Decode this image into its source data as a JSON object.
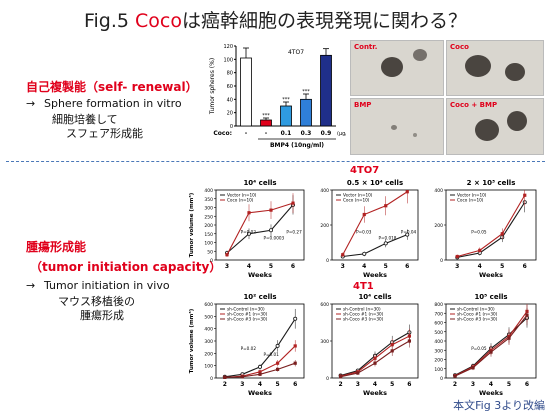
{
  "title": {
    "prefix": "Fig.5 ",
    "coco": "Coco",
    "rest": "は癌幹細胞の表現発現に関わる？"
  },
  "left_top": {
    "heading": "自己複製能（self- renewal）",
    "arrow": "→",
    "line1": "Sphere formation in vitro",
    "line2": "細胞培養して",
    "line3": "スフェア形成能"
  },
  "left_bottom": {
    "heading1": "腫瘍形成能",
    "heading2": "（tumor initiation capacity）",
    "arrow": "→",
    "line1": "Tumor initiation in vivo",
    "line2": "マウス移植後の",
    "line3": "腫瘍形成"
  },
  "photos": [
    {
      "label": "Contr."
    },
    {
      "label": "Coco"
    },
    {
      "label": "BMP"
    },
    {
      "label": "Coco + BMP"
    }
  ],
  "footer": "本文Fig 3より改編",
  "colors": {
    "red": "#e0001b",
    "blue": "#2f7fd8",
    "navy": "#1f2f8a",
    "line_black": "#1a1a1a",
    "line_red": "#b22222"
  },
  "chart_data": [
    {
      "type": "bar",
      "title": "4TO7",
      "ylabel": "Tumor spheres (%)",
      "ylim": [
        0,
        120
      ],
      "yticks": [
        0,
        20,
        40,
        60,
        80,
        100,
        120
      ],
      "row_label": "Coco:",
      "categories": [
        "-",
        "-",
        "0.1",
        "0.3",
        "0.9"
      ],
      "unit": "(μg/ml)",
      "bmp_label": "BMP4 (10ng/ml)",
      "bmp_signs": [
        "-",
        "+",
        "+",
        "+",
        "+"
      ],
      "values": [
        102,
        9,
        30,
        40,
        106
      ],
      "errors": [
        15,
        3,
        6,
        8,
        10
      ],
      "bar_colors": [
        "#ffffff",
        "#e0001b",
        "#2f9be0",
        "#2f7fd8",
        "#1f2f8a"
      ],
      "annotations": [
        "",
        "***",
        "***",
        "***",
        ""
      ]
    },
    {
      "type": "line",
      "group": "4TO7",
      "title": "10⁴ cells",
      "xlabel": "Weeks",
      "ylabel": "Tumor volume (mm³)",
      "x": [
        3,
        4,
        5,
        6
      ],
      "ylim": [
        0,
        400
      ],
      "yticks": [
        0,
        50,
        100,
        150,
        200,
        250,
        300,
        350,
        400
      ],
      "series": [
        {
          "name": "Vector (n=10)",
          "values": [
            40,
            150,
            170,
            315
          ],
          "color": "#1a1a1a"
        },
        {
          "name": "Coco (n=10)",
          "values": [
            30,
            270,
            285,
            325
          ],
          "color": "#b22222"
        }
      ],
      "annotations": [
        "P=0.02",
        "P=0.0003",
        "P=0.27"
      ]
    },
    {
      "type": "line",
      "group": "4TO7",
      "title": "0.5 × 10⁴ cells",
      "xlabel": "Weeks",
      "x": [
        3,
        4,
        5,
        6
      ],
      "ylim": [
        0,
        400
      ],
      "series": [
        {
          "name": "Vector (n=10)",
          "values": [
            20,
            35,
            95,
            145
          ],
          "color": "#1a1a1a"
        },
        {
          "name": "Coco (n=10)",
          "values": [
            30,
            260,
            310,
            390
          ],
          "color": "#b22222"
        }
      ],
      "annotations": [
        "P=0.03",
        "P=0.018",
        "P=0.04"
      ]
    },
    {
      "type": "line",
      "group": "4TO7",
      "title": "2 × 10³ cells",
      "xlabel": "Weeks",
      "x": [
        3,
        4,
        5,
        6
      ],
      "ylim": [
        0,
        400
      ],
      "series": [
        {
          "name": "Vector (n=10)",
          "values": [
            15,
            40,
            130,
            330
          ],
          "color": "#1a1a1a"
        },
        {
          "name": "Coco (n=10)",
          "values": [
            20,
            55,
            150,
            370
          ],
          "color": "#b22222"
        }
      ],
      "annotations": [
        "P=0.05"
      ]
    },
    {
      "type": "line",
      "group": "4T1",
      "title": "10² cells",
      "xlabel": "Weeks",
      "ylabel": "Tumor volume (mm³)",
      "x": [
        2,
        3,
        4,
        5,
        6
      ],
      "ylim": [
        0,
        600
      ],
      "yticks": [
        0,
        100,
        200,
        300,
        400,
        500,
        600
      ],
      "series": [
        {
          "name": "sh-Control (n=30)",
          "values": [
            10,
            30,
            90,
            260,
            480
          ],
          "color": "#1a1a1a"
        },
        {
          "name": "sh-Coco #1 (n=30)",
          "values": [
            5,
            15,
            50,
            120,
            260
          ],
          "color": "#b22222"
        },
        {
          "name": "sh-Coco #3 (n=30)",
          "values": [
            5,
            10,
            30,
            70,
            120
          ],
          "color": "#7a1f1f"
        }
      ],
      "annotations": [
        "P=0.02",
        "P=0.01"
      ]
    },
    {
      "type": "line",
      "group": "4T1",
      "title": "10⁴ cells",
      "xlabel": "Weeks",
      "x": [
        2,
        3,
        4,
        5,
        6
      ],
      "ylim": [
        0,
        600
      ],
      "series": [
        {
          "name": "sh-Control (n=30)",
          "values": [
            20,
            60,
            180,
            290,
            370
          ],
          "color": "#1a1a1a"
        },
        {
          "name": "sh-Coco #1 (n=30)",
          "values": [
            15,
            50,
            160,
            270,
            340
          ],
          "color": "#b22222"
        },
        {
          "name": "sh-Coco #3 (n=30)",
          "values": [
            10,
            40,
            120,
            220,
            300
          ],
          "color": "#7a1f1f"
        }
      ],
      "annotations": []
    },
    {
      "type": "line",
      "group": "4T1",
      "title": "10⁵ cells",
      "xlabel": "Weeks",
      "x": [
        2,
        3,
        4,
        5,
        6
      ],
      "ylim": [
        0,
        800
      ],
      "yticks": [
        0,
        100,
        200,
        300,
        400,
        500,
        600,
        700,
        800
      ],
      "series": [
        {
          "name": "sh-Control (n=30)",
          "values": [
            30,
            130,
            320,
            470,
            650
          ],
          "color": "#1a1a1a"
        },
        {
          "name": "sh-Coco #1 (n=30)",
          "values": [
            25,
            120,
            300,
            450,
            720
          ],
          "color": "#b22222"
        },
        {
          "name": "sh-Coco #3 (n=30)",
          "values": [
            20,
            110,
            280,
            430,
            680
          ],
          "color": "#7a1f1f"
        }
      ],
      "annotations": [
        "P=0.05"
      ]
    }
  ],
  "group_labels": {
    "top": "4TO7",
    "bottom": "4T1"
  }
}
